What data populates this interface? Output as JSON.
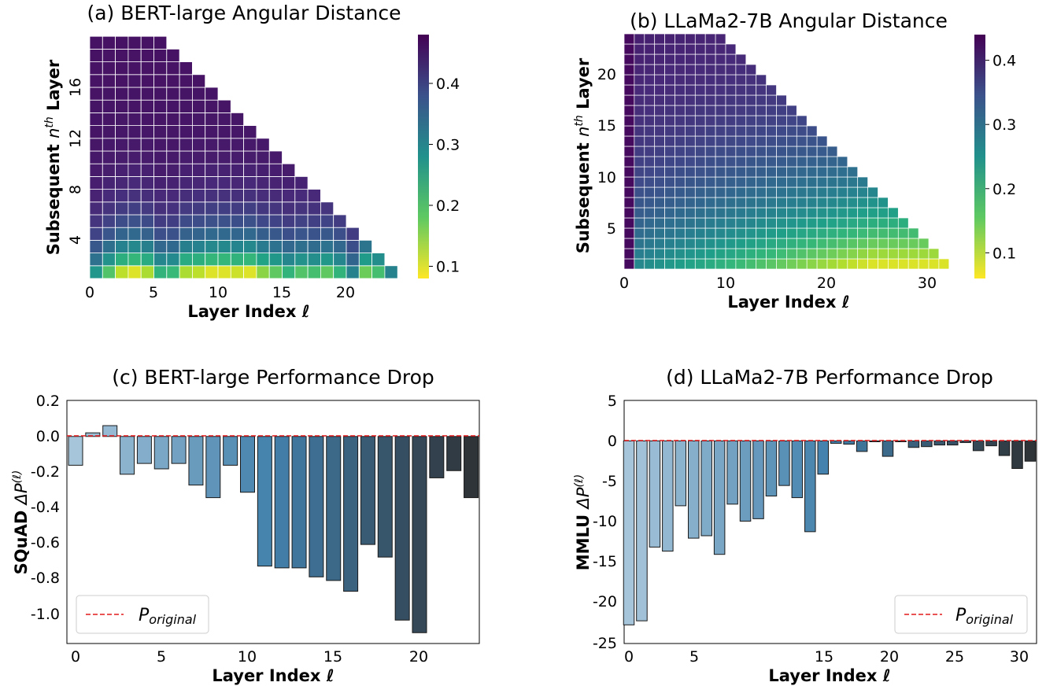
{
  "chart_data": [
    {
      "type": "heatmap",
      "title": "(a) BERT-large Angular Distance",
      "xlabel": "Layer Index ℓ",
      "ylabel": "Subsequent nth Layer",
      "x_ticks": [
        "0",
        "5",
        "10",
        "15",
        "20"
      ],
      "y_ticks": [
        "4",
        "8",
        "12",
        "16"
      ],
      "n_layers": 24,
      "max_n": 19,
      "value_model": {
        "near_n_by_layer": [
          0.27,
          0.19,
          0.12,
          0.1,
          0.13,
          0.22,
          0.21,
          0.13,
          0.12,
          0.1,
          0.1,
          0.11,
          0.1,
          0.15,
          0.18,
          0.22,
          0.19,
          0.2,
          0.18,
          0.22,
          0.3,
          0.17,
          0.2,
          0.3
        ],
        "far_value": 0.46
      },
      "colorbar_ticks": [
        "0.1",
        "0.2",
        "0.3",
        "0.4"
      ],
      "colorbar_range": [
        0.08,
        0.48
      ],
      "colormap": "viridis_r"
    },
    {
      "type": "heatmap",
      "title": "(b) LLaMa2-7B Angular Distance",
      "xlabel": "Layer Index ℓ",
      "ylabel": "Subsequent nth Layer",
      "x_ticks": [
        "0",
        "10",
        "20",
        "30"
      ],
      "y_ticks": [
        "5",
        "10",
        "15",
        "20"
      ],
      "n_layers": 32,
      "max_n": 23,
      "value_model": {
        "first_column": 0.43,
        "min_value": 0.08,
        "far_value": 0.42
      },
      "colorbar_ticks": [
        "0.1",
        "0.2",
        "0.3",
        "0.4"
      ],
      "colorbar_range": [
        0.06,
        0.44
      ],
      "colormap": "viridis_r"
    },
    {
      "type": "bar",
      "title": "(c) BERT-large Performance Drop",
      "xlabel": "Layer Index ℓ",
      "ylabel": "SQuAD ΔP(ℓ)",
      "x": [
        0,
        1,
        2,
        3,
        4,
        5,
        6,
        7,
        8,
        9,
        10,
        11,
        12,
        13,
        14,
        15,
        16,
        17,
        18,
        19,
        20,
        21,
        22,
        23
      ],
      "values": [
        -0.16,
        0.02,
        0.06,
        -0.21,
        -0.15,
        -0.18,
        -0.15,
        -0.27,
        -0.34,
        -0.16,
        -0.31,
        -0.72,
        -0.73,
        -0.73,
        -0.78,
        -0.8,
        -0.86,
        -0.6,
        -0.67,
        -1.02,
        -1.09,
        -0.23,
        -0.19,
        -0.34
      ],
      "ylim": [
        -1.15,
        0.2
      ],
      "y_ticks": [
        "0.2",
        "0.0",
        "-0.2",
        "-0.4",
        "-0.6",
        "-0.8",
        "-1.0"
      ],
      "x_ticks": [
        "0",
        "5",
        "10",
        "15",
        "20"
      ],
      "baseline": {
        "label": "original",
        "value": 0,
        "color": "#e31a1c"
      },
      "legend_symbol": "P",
      "legend_sub": "original",
      "legend_position": "lower-left"
    },
    {
      "type": "bar",
      "title": "(d) LLaMa2-7B Performance Drop",
      "xlabel": "Layer Index ℓ",
      "ylabel": "MMLU ΔP(ℓ)",
      "x": [
        0,
        1,
        2,
        3,
        4,
        5,
        6,
        7,
        8,
        9,
        10,
        11,
        12,
        13,
        14,
        15,
        16,
        17,
        18,
        19,
        20,
        21,
        22,
        23,
        24,
        25,
        26,
        27,
        28,
        29,
        30,
        31
      ],
      "values": [
        -22.7,
        -22.2,
        -13.1,
        -13.6,
        -8.0,
        -12.0,
        -11.7,
        -14.0,
        -7.8,
        -9.9,
        -9.6,
        -6.8,
        -5.5,
        -7.0,
        -11.2,
        -4.1,
        -0.3,
        -0.4,
        -1.3,
        -0.1,
        -1.9,
        -0.1,
        -0.8,
        -0.7,
        -0.5,
        -0.5,
        -0.2,
        -1.2,
        -0.6,
        -1.8,
        -3.4,
        -2.5
      ],
      "ylim": [
        -25,
        5
      ],
      "y_ticks": [
        "5",
        "0",
        "-5",
        "-10",
        "-15",
        "-20",
        "-25"
      ],
      "x_ticks": [
        "0",
        "5",
        "15",
        "20",
        "25",
        "30"
      ],
      "baseline": {
        "label": "original",
        "value": 0,
        "color": "#e31a1c"
      },
      "legend_symbol": "P",
      "legend_sub": "original",
      "legend_position": "lower-right"
    }
  ]
}
